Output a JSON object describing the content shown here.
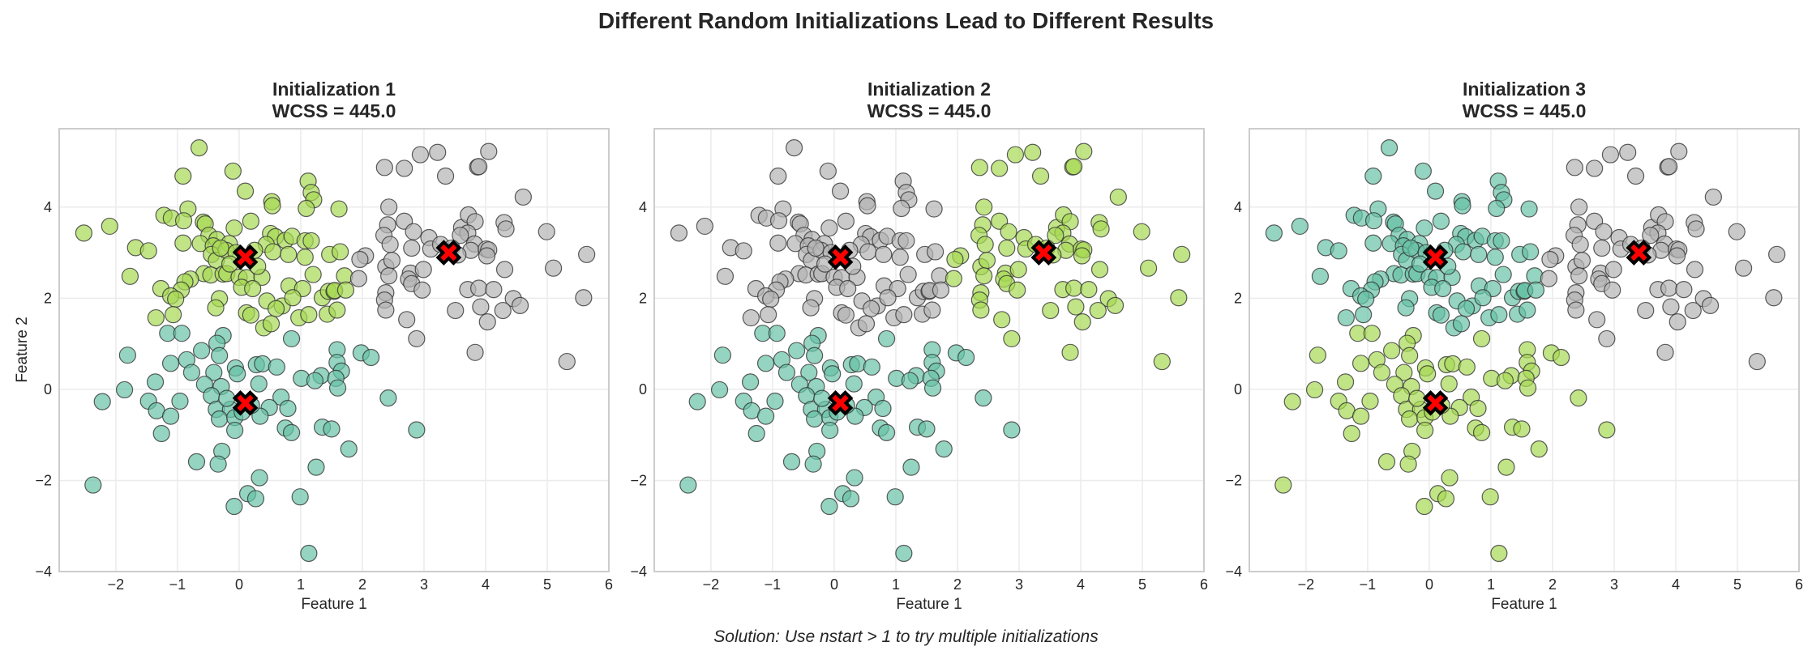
{
  "figure": {
    "suptitle": "Different Random Initializations Lead to Different Results",
    "footer": "Solution: Use nstart > 1 to try multiple initializations"
  },
  "colors": {
    "teal": "#66c2a5",
    "green": "#a6d854",
    "gray": "#b3b3b3",
    "centroid_fill": "#ff0000",
    "centroid_edge": "#000000",
    "grid": "#ebebeb",
    "spine": "#cccccc"
  },
  "chart_data": [
    {
      "type": "scatter",
      "title": "Initialization 1",
      "subtitle": "WCSS = 445.0",
      "xlabel": "Feature 1",
      "ylabel": "Feature 2",
      "xlim": [
        -2.92,
        6.0
      ],
      "ylim": [
        -4,
        5.72
      ],
      "xticks": [
        "-2",
        "-1",
        "0",
        "1",
        "2",
        "3",
        "4",
        "5",
        "6"
      ],
      "yticks": [
        "-4",
        "-2",
        "0",
        "2",
        "4"
      ],
      "grid": true,
      "cluster_colors": {
        "A": "green",
        "B": "gray",
        "C": "teal"
      }
    },
    {
      "type": "scatter",
      "title": "Initialization 2",
      "subtitle": "WCSS = 445.0",
      "xlabel": "Feature 1",
      "ylabel": "",
      "xlim": [
        -2.92,
        6.0
      ],
      "ylim": [
        -4,
        5.72
      ],
      "xticks": [
        "-2",
        "-1",
        "0",
        "1",
        "2",
        "3",
        "4",
        "5",
        "6"
      ],
      "yticks": [
        "-4",
        "-2",
        "0",
        "2",
        "4"
      ],
      "grid": true,
      "cluster_colors": {
        "A": "gray",
        "B": "green",
        "C": "teal"
      }
    },
    {
      "type": "scatter",
      "title": "Initialization 3",
      "subtitle": "WCSS = 445.0",
      "xlabel": "Feature 1",
      "ylabel": "",
      "xlim": [
        -2.92,
        6.0
      ],
      "ylim": [
        -4,
        5.72
      ],
      "xticks": [
        "-2",
        "-1",
        "0",
        "1",
        "2",
        "3",
        "4",
        "5",
        "6"
      ],
      "yticks": [
        "-4",
        "-2",
        "0",
        "2",
        "4"
      ],
      "grid": true,
      "cluster_colors": {
        "A": "teal",
        "B": "gray",
        "C": "green"
      }
    }
  ],
  "centroids": {
    "A": [
      0.1,
      2.9
    ],
    "B": [
      3.4,
      3.0
    ],
    "C": [
      0.1,
      -0.3
    ]
  },
  "points": {
    "A": [
      [
        -0.65,
        5.3
      ],
      [
        -0.91,
        4.68
      ],
      [
        -0.1,
        4.79
      ],
      [
        0.1,
        4.35
      ],
      [
        0.53,
        4.12
      ],
      [
        0.54,
        4.03
      ],
      [
        1.12,
        4.57
      ],
      [
        1.17,
        4.32
      ],
      [
        1.21,
        4.16
      ],
      [
        1.09,
        3.97
      ],
      [
        -0.83,
        3.96
      ],
      [
        -1.22,
        3.82
      ],
      [
        -1.1,
        3.76
      ],
      [
        -0.9,
        3.7
      ],
      [
        -0.58,
        3.67
      ],
      [
        -0.55,
        3.63
      ],
      [
        0.19,
        3.69
      ],
      [
        -2.52,
        3.43
      ],
      [
        -2.1,
        3.58
      ],
      [
        -0.08,
        3.54
      ],
      [
        -0.49,
        3.38
      ],
      [
        -0.36,
        3.29
      ],
      [
        -0.91,
        3.21
      ],
      [
        -0.63,
        3.2
      ],
      [
        -0.42,
        3.15
      ],
      [
        -0.16,
        3.2
      ],
      [
        -1.68,
        3.11
      ],
      [
        -1.47,
        3.04
      ],
      [
        -0.45,
        2.96
      ],
      [
        -0.37,
        2.83
      ],
      [
        -0.21,
        3.05
      ],
      [
        0.51,
        3.42
      ],
      [
        0.59,
        3.35
      ],
      [
        0.75,
        3.27
      ],
      [
        0.86,
        3.36
      ],
      [
        1.07,
        3.26
      ],
      [
        1.17,
        3.26
      ],
      [
        0.44,
        3.18
      ],
      [
        0.55,
        3.02
      ],
      [
        0.8,
        2.96
      ],
      [
        1.07,
        2.9
      ],
      [
        1.47,
        2.96
      ],
      [
        -1.77,
        2.48
      ],
      [
        -0.57,
        2.54
      ],
      [
        -0.46,
        2.51
      ],
      [
        -0.26,
        2.53
      ],
      [
        -0.2,
        2.54
      ],
      [
        0.0,
        2.46
      ],
      [
        0.12,
        2.45
      ],
      [
        0.37,
        2.46
      ],
      [
        1.2,
        2.52
      ],
      [
        -0.79,
        2.42
      ],
      [
        -0.88,
        2.36
      ],
      [
        -1.27,
        2.21
      ],
      [
        -0.94,
        2.18
      ],
      [
        -1.11,
        2.05
      ],
      [
        -1.03,
        1.98
      ],
      [
        0.04,
        2.24
      ],
      [
        0.22,
        2.21
      ],
      [
        0.81,
        2.27
      ],
      [
        1.03,
        2.21
      ],
      [
        1.35,
        2.01
      ],
      [
        1.45,
        2.15
      ],
      [
        1.54,
        2.15
      ],
      [
        -0.32,
        1.99
      ],
      [
        -0.38,
        1.79
      ],
      [
        0.45,
        1.94
      ],
      [
        0.7,
        1.83
      ],
      [
        0.6,
        1.77
      ],
      [
        0.87,
        2.01
      ],
      [
        -1.35,
        1.57
      ],
      [
        -1.07,
        1.64
      ],
      [
        0.12,
        1.68
      ],
      [
        0.19,
        1.63
      ],
      [
        0.4,
        1.35
      ],
      [
        0.52,
        1.44
      ],
      [
        0.97,
        1.57
      ],
      [
        1.13,
        1.64
      ],
      [
        1.43,
        1.65
      ],
      [
        1.62,
        3.96
      ],
      [
        1.64,
        3.02
      ],
      [
        1.71,
        2.49
      ],
      [
        1.55,
        2.17
      ],
      [
        1.73,
        2.18
      ],
      [
        1.59,
        1.74
      ],
      [
        -0.3,
        3.1
      ],
      [
        -0.05,
        3.0
      ],
      [
        0.25,
        3.05
      ],
      [
        -0.15,
        2.75
      ],
      [
        0.3,
        2.7
      ]
    ],
    "B": [
      [
        2.36,
        4.87
      ],
      [
        2.68,
        4.85
      ],
      [
        2.94,
        5.15
      ],
      [
        3.22,
        5.2
      ],
      [
        3.35,
        4.68
      ],
      [
        3.87,
        4.88
      ],
      [
        3.89,
        4.89
      ],
      [
        4.05,
        5.22
      ],
      [
        4.61,
        4.22
      ],
      [
        2.43,
        4.0
      ],
      [
        2.41,
        3.61
      ],
      [
        2.68,
        3.69
      ],
      [
        2.83,
        3.46
      ],
      [
        2.35,
        3.38
      ],
      [
        2.45,
        3.18
      ],
      [
        2.8,
        3.1
      ],
      [
        3.08,
        3.33
      ],
      [
        3.11,
        3.08
      ],
      [
        3.27,
        3.18
      ],
      [
        3.61,
        3.55
      ],
      [
        3.72,
        3.83
      ],
      [
        3.83,
        3.68
      ],
      [
        3.71,
        3.43
      ],
      [
        3.59,
        3.38
      ],
      [
        3.82,
        3.19
      ],
      [
        3.76,
        3.05
      ],
      [
        4.01,
        3.08
      ],
      [
        4.05,
        3.06
      ],
      [
        4.02,
        2.93
      ],
      [
        4.3,
        3.66
      ],
      [
        4.33,
        3.52
      ],
      [
        4.99,
        3.46
      ],
      [
        5.64,
        2.96
      ],
      [
        4.31,
        2.63
      ],
      [
        5.1,
        2.66
      ],
      [
        2.05,
        2.93
      ],
      [
        1.96,
        2.85
      ],
      [
        1.94,
        2.43
      ],
      [
        2.38,
        2.69
      ],
      [
        2.48,
        2.83
      ],
      [
        2.43,
        2.49
      ],
      [
        2.78,
        2.55
      ],
      [
        2.75,
        2.42
      ],
      [
        2.8,
        2.32
      ],
      [
        2.99,
        2.63
      ],
      [
        2.97,
        2.18
      ],
      [
        2.38,
        2.12
      ],
      [
        2.36,
        1.96
      ],
      [
        2.38,
        1.74
      ],
      [
        2.72,
        1.53
      ],
      [
        3.71,
        2.19
      ],
      [
        3.89,
        2.22
      ],
      [
        4.13,
        2.19
      ],
      [
        4.45,
        1.99
      ],
      [
        4.56,
        1.84
      ],
      [
        3.92,
        1.81
      ],
      [
        4.28,
        1.73
      ],
      [
        3.51,
        1.73
      ],
      [
        4.03,
        1.48
      ],
      [
        5.59,
        2.01
      ],
      [
        2.88,
        1.11
      ],
      [
        3.83,
        0.81
      ],
      [
        5.32,
        0.61
      ],
      [
        3.45,
        3.1
      ],
      [
        3.55,
        2.95
      ]
    ],
    "C": [
      [
        -1.16,
        1.23
      ],
      [
        -0.93,
        1.23
      ],
      [
        -0.26,
        1.18
      ],
      [
        -0.36,
        1.01
      ],
      [
        0.85,
        1.11
      ],
      [
        -1.81,
        0.75
      ],
      [
        -0.61,
        0.85
      ],
      [
        -0.32,
        0.74
      ],
      [
        -1.11,
        0.57
      ],
      [
        -0.85,
        0.65
      ],
      [
        -0.06,
        0.47
      ],
      [
        -0.03,
        0.34
      ],
      [
        0.28,
        0.54
      ],
      [
        0.38,
        0.56
      ],
      [
        0.61,
        0.49
      ],
      [
        -0.77,
        0.37
      ],
      [
        -0.41,
        0.37
      ],
      [
        1.59,
        0.87
      ],
      [
        1.98,
        0.8
      ],
      [
        2.14,
        0.7
      ],
      [
        1.59,
        0.59
      ],
      [
        1.66,
        0.4
      ],
      [
        1.33,
        0.3
      ],
      [
        1.57,
        0.24
      ],
      [
        1.6,
        0.03
      ],
      [
        1.01,
        0.24
      ],
      [
        1.23,
        0.19
      ],
      [
        -1.36,
        0.16
      ],
      [
        -1.86,
        -0.01
      ],
      [
        -0.56,
        0.11
      ],
      [
        -0.29,
        0.06
      ],
      [
        0.32,
        0.12
      ],
      [
        0.68,
        -0.17
      ],
      [
        -0.45,
        -0.14
      ],
      [
        -2.22,
        -0.27
      ],
      [
        -1.47,
        -0.26
      ],
      [
        -0.96,
        -0.26
      ],
      [
        -1.34,
        -0.47
      ],
      [
        -0.37,
        -0.44
      ],
      [
        -0.14,
        -0.44
      ],
      [
        0.49,
        -0.4
      ],
      [
        0.79,
        -0.42
      ],
      [
        -1.11,
        -0.59
      ],
      [
        -0.32,
        -0.65
      ],
      [
        -0.07,
        -0.62
      ],
      [
        0.34,
        -0.59
      ],
      [
        2.42,
        -0.19
      ],
      [
        -0.07,
        -0.9
      ],
      [
        0.75,
        -0.85
      ],
      [
        0.85,
        -0.95
      ],
      [
        1.35,
        -0.83
      ],
      [
        1.5,
        -0.87
      ],
      [
        2.88,
        -0.89
      ],
      [
        -1.26,
        -0.97
      ],
      [
        -0.28,
        -1.36
      ],
      [
        1.78,
        -1.31
      ],
      [
        -0.69,
        -1.59
      ],
      [
        -0.34,
        -1.64
      ],
      [
        1.25,
        -1.71
      ],
      [
        0.33,
        -1.94
      ],
      [
        -2.37,
        -2.1
      ],
      [
        0.14,
        -2.29
      ],
      [
        0.27,
        -2.4
      ],
      [
        0.99,
        -2.36
      ],
      [
        -0.08,
        -2.57
      ],
      [
        1.13,
        -3.6
      ],
      [
        -0.2,
        -0.2
      ],
      [
        0.05,
        -0.5
      ],
      [
        0.2,
        -0.35
      ]
    ]
  }
}
